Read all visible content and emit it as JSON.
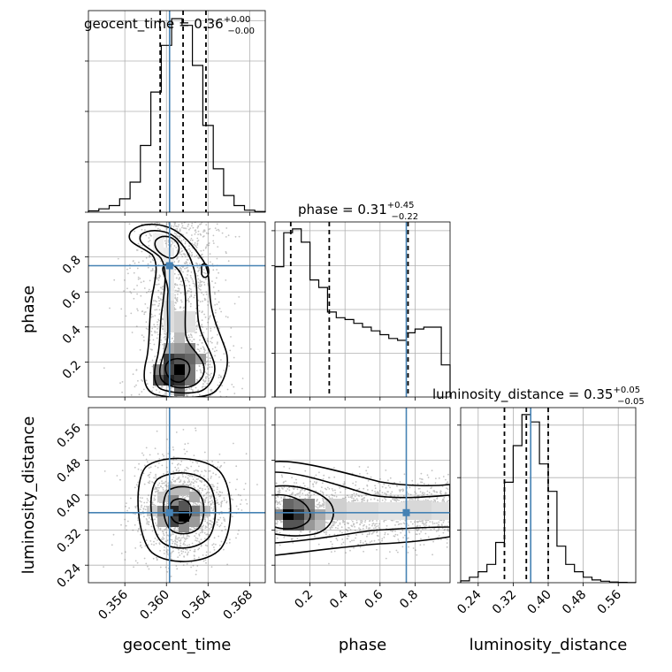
{
  "chart_data": {
    "type": "corner",
    "parameters": [
      "geocent_time",
      "phase",
      "luminosity_distance"
    ],
    "titles": [
      {
        "name": "geocent_time",
        "median": "0.36",
        "plus": "+0.00",
        "minus": "−0.00"
      },
      {
        "name": "phase",
        "median": "0.31",
        "plus": "+0.45",
        "minus": "−0.22"
      },
      {
        "name": "luminosity_distance",
        "median": "0.35",
        "plus": "+0.05",
        "minus": "−0.05"
      }
    ],
    "ranges": [
      [
        0.3525,
        0.3695
      ],
      [
        0.0,
        1.0
      ],
      [
        0.2,
        0.6
      ]
    ],
    "ticks": [
      {
        "values": [
          0.356,
          0.36,
          0.364,
          0.368
        ],
        "labels": [
          "0.356",
          "0.360",
          "0.364",
          "0.368"
        ]
      },
      {
        "values": [
          0.2,
          0.4,
          0.6,
          0.8
        ],
        "labels": [
          "0.2",
          "0.4",
          "0.6",
          "0.8"
        ]
      },
      {
        "values": [
          0.24,
          0.32,
          0.4,
          0.48,
          0.56
        ],
        "labels": [
          "0.24",
          "0.32",
          "0.40",
          "0.48",
          "0.56"
        ]
      }
    ],
    "truths": [
      0.3603,
      0.75,
      0.36
    ],
    "quantiles": [
      [
        0.3594,
        0.3616,
        0.3638
      ],
      [
        0.09,
        0.31,
        0.76
      ],
      [
        0.3,
        0.35,
        0.4
      ]
    ],
    "histograms": [
      {
        "bin_edges": [
          0.3525,
          0.3535,
          0.3545,
          0.3555,
          0.3565,
          0.3575,
          0.3585,
          0.3595,
          0.3605,
          0.3615,
          0.3625,
          0.3635,
          0.3645,
          0.3655,
          0.3665,
          0.3675,
          0.3685,
          0.3695
        ],
        "counts": [
          2,
          5,
          10,
          20,
          45,
          100,
          180,
          250,
          290,
          280,
          220,
          130,
          65,
          25,
          10,
          3,
          1
        ]
      },
      {
        "bin_edges": [
          0.0,
          0.05,
          0.1,
          0.15,
          0.2,
          0.25,
          0.3,
          0.35,
          0.4,
          0.45,
          0.5,
          0.55,
          0.6,
          0.65,
          0.7,
          0.75,
          0.8,
          0.85,
          0.9,
          0.95,
          1.0
        ],
        "counts": [
          0.69,
          0.87,
          0.89,
          0.82,
          0.62,
          0.58,
          0.45,
          0.42,
          0.41,
          0.39,
          0.37,
          0.35,
          0.33,
          0.31,
          0.3,
          0.34,
          0.36,
          0.37,
          0.37,
          0.17
        ]
      },
      {
        "bin_edges": [
          0.2,
          0.22,
          0.24,
          0.26,
          0.28,
          0.3,
          0.32,
          0.34,
          0.36,
          0.38,
          0.4,
          0.42,
          0.44,
          0.46,
          0.48,
          0.5,
          0.52,
          0.54,
          0.56,
          0.58,
          0.6
        ],
        "counts": [
          0.01,
          0.03,
          0.06,
          0.1,
          0.22,
          0.55,
          0.75,
          0.92,
          0.88,
          0.65,
          0.5,
          0.2,
          0.1,
          0.06,
          0.03,
          0.015,
          0.008,
          0.004,
          0.002,
          0.001
        ]
      }
    ],
    "grid": true
  }
}
